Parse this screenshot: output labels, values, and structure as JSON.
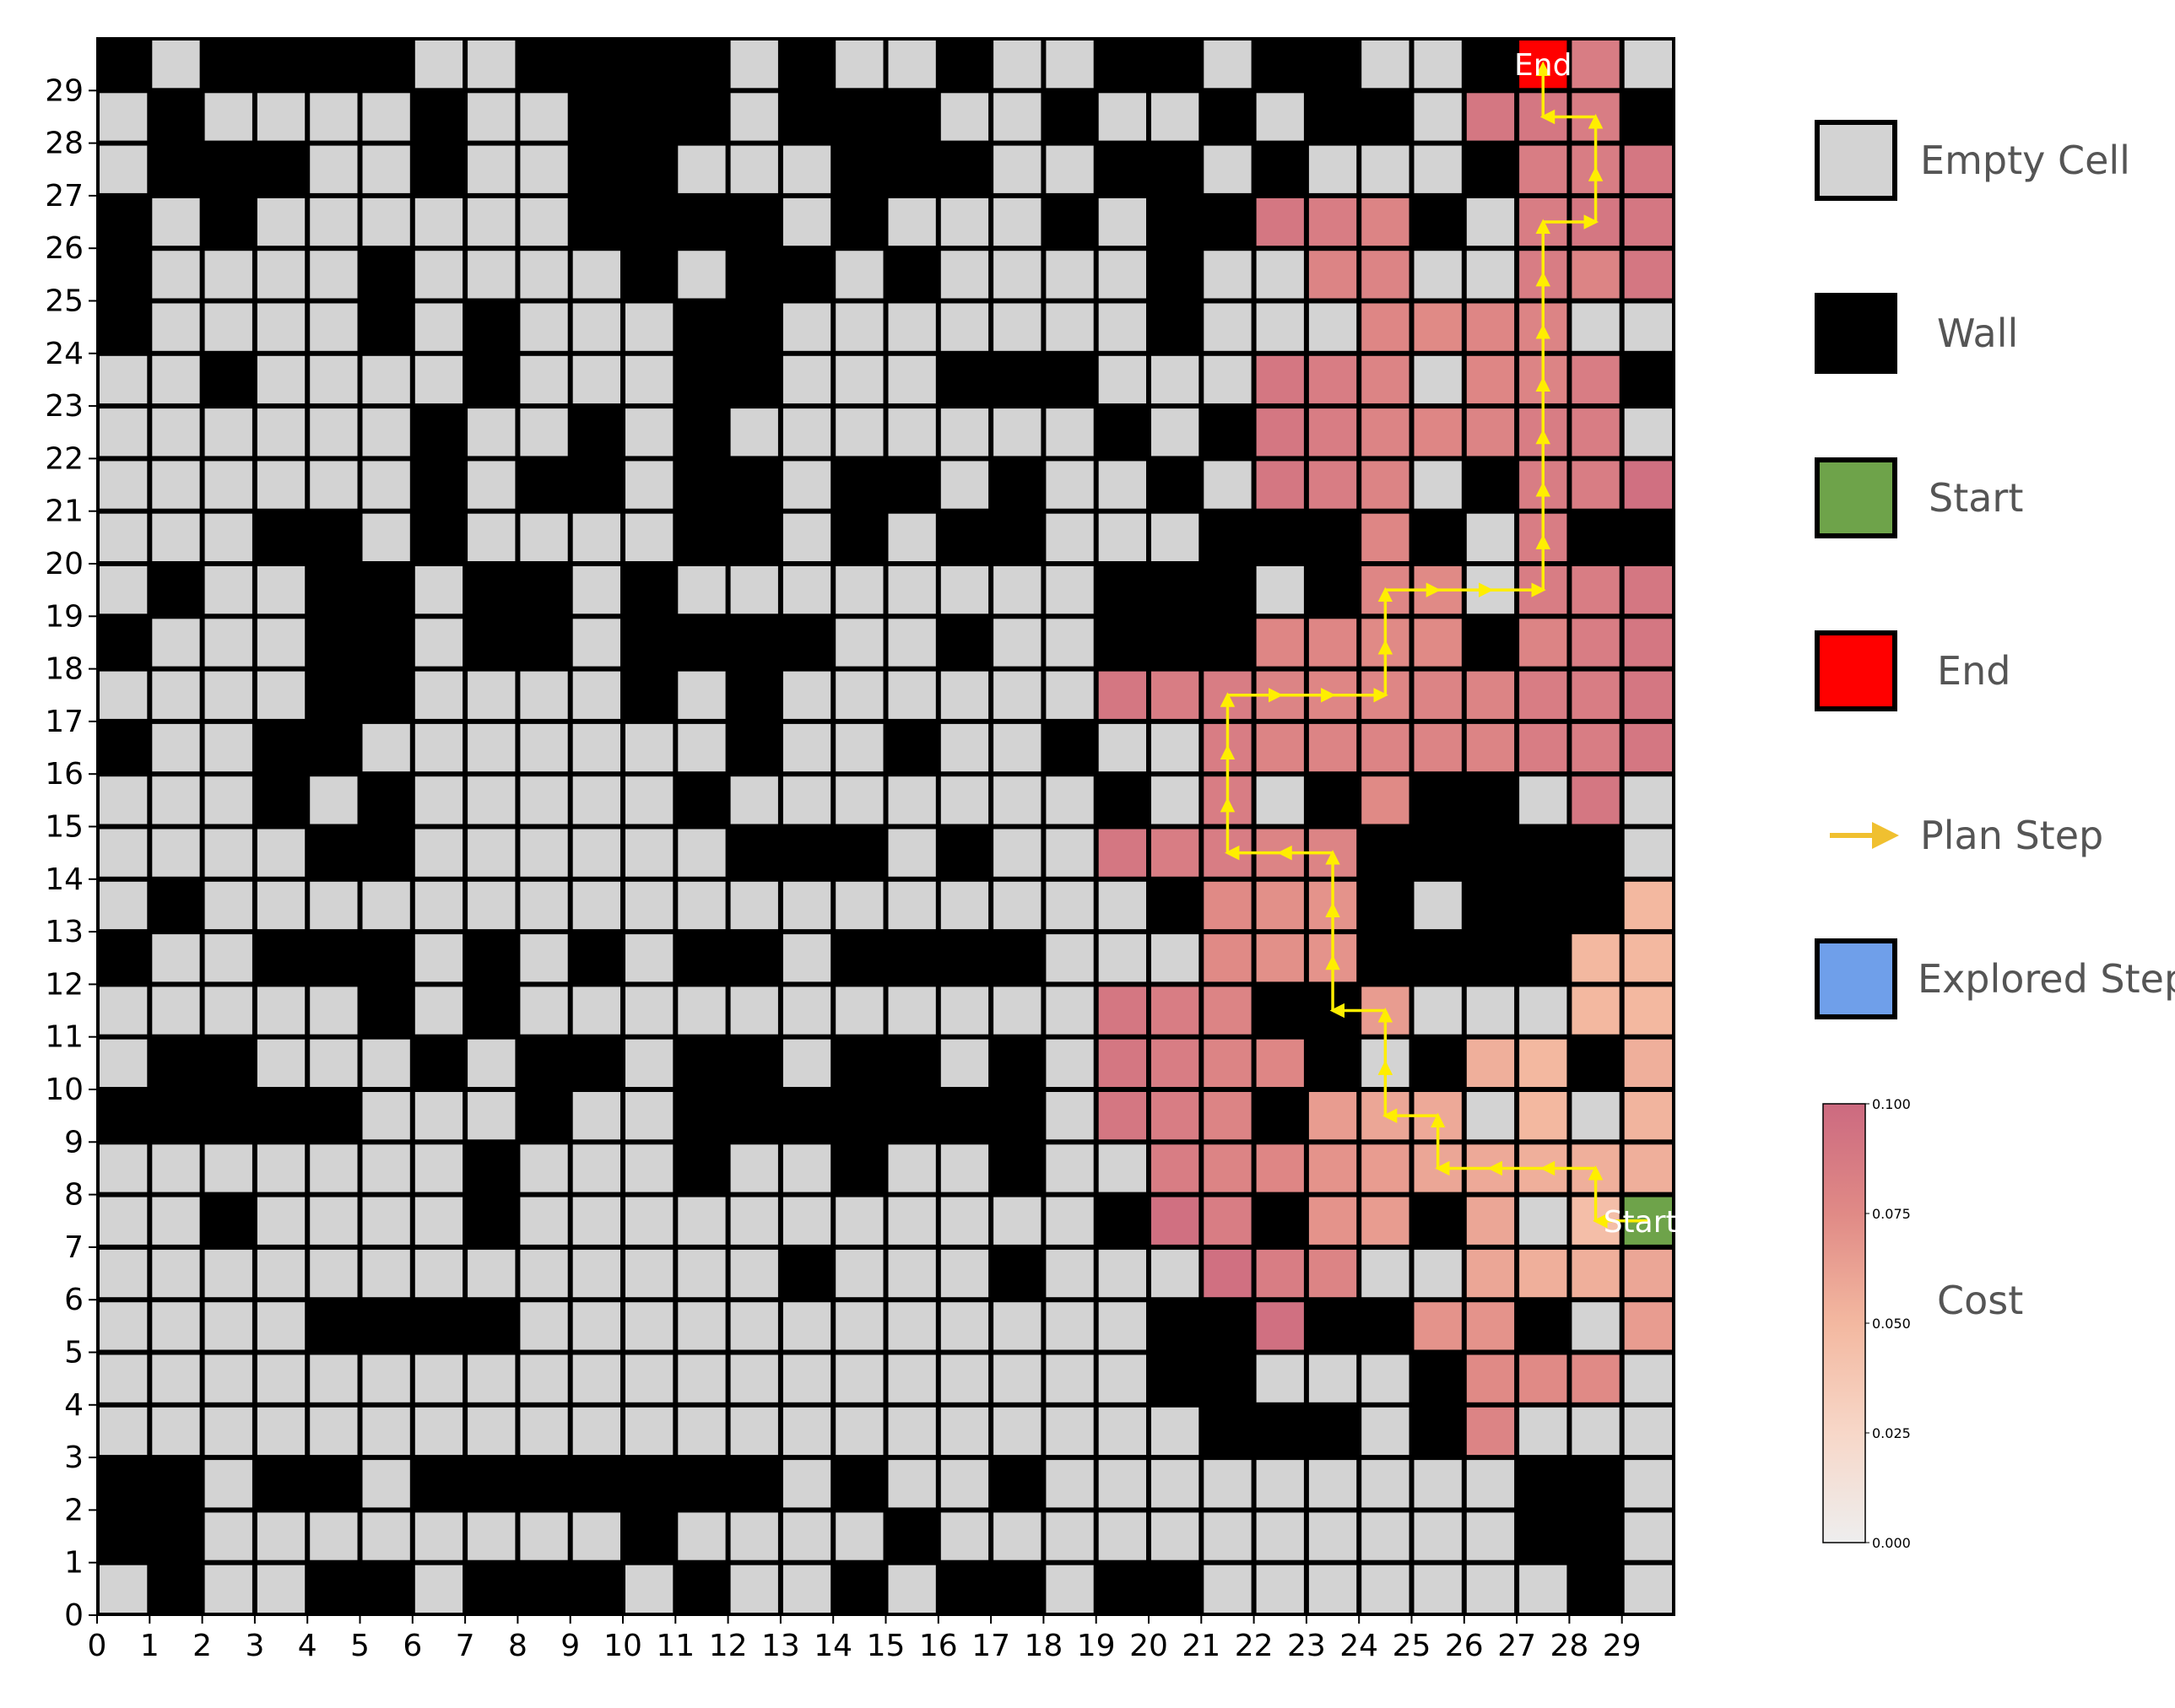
{
  "grid": {
    "size": 30,
    "rows_top_to_bottom": [
      "#.#####..###.#.###.###...#...###...###.###.#.",
      ".#.###.#.#...##.#.##...##...#..###.###.##..#"
    ],
    "walls_top_to_bottom": [
      "101111001111010010011011001000",
      "010000100111011100100101100011",
      "011100100110001110011010001110",
      "101000000111101000101100010100",
      "100001000010110100001000000001",
      "100001010001100000001000111100",
      "001000010001100011100000001111",
      "000000100101000000010101100010",
      "000000101101101101001000001100",
      "000110100001101011000111010011",
      "010011011010000000011101010011",
      "100011011011110010011111111000",
      "000011000010100000000110011100",
      "100110000000100100100100011110",
      "000101000001000000010001111000",
      "000011000000111010000111111110",
      "010000000000000000001111101110",
      "100111010101101111000111111111",
      "000001010000000000001011000001",
      "011000101101101101011101011010",
      "111110001001111111000011000000",
      "000000010001001001001000010000",
      "001000010000000000011011010000",
      "000000000000010001000111000000",
      "000011110000000000001101111101",
      "000000000000000000001100010000",
      "000000000000000000000111011000",
      "110110111111101001000000000110",
      "110000000010000100000000000110",
      "010011011101001011011000000010"
    ]
  },
  "explored": [
    [
      22,
      26,
      0.09
    ],
    [
      23,
      26,
      0.085
    ],
    [
      24,
      26,
      0.08
    ],
    [
      29,
      26,
      0.09
    ],
    [
      23,
      25,
      0.08
    ],
    [
      24,
      25,
      0.08
    ],
    [
      28,
      25,
      0.08
    ],
    [
      29,
      25,
      0.09
    ],
    [
      24,
      24,
      0.078
    ],
    [
      25,
      24,
      0.075
    ],
    [
      26,
      24,
      0.078
    ],
    [
      27,
      24,
      0.08
    ],
    [
      22,
      23,
      0.09
    ],
    [
      23,
      23,
      0.085
    ],
    [
      24,
      23,
      0.08
    ],
    [
      26,
      23,
      0.078
    ],
    [
      27,
      23,
      0.08
    ],
    [
      22,
      22,
      0.09
    ],
    [
      23,
      22,
      0.085
    ],
    [
      24,
      22,
      0.08
    ],
    [
      25,
      22,
      0.078
    ],
    [
      26,
      22,
      0.08
    ],
    [
      27,
      22,
      0.085
    ],
    [
      28,
      22,
      0.085
    ],
    [
      22,
      21,
      0.09
    ],
    [
      23,
      21,
      0.085
    ],
    [
      24,
      21,
      0.08
    ],
    [
      27,
      21,
      0.085
    ],
    [
      28,
      21,
      0.085
    ],
    [
      29,
      21,
      0.095
    ],
    [
      24,
      20,
      0.078
    ],
    [
      27,
      20,
      0.085
    ],
    [
      24,
      19,
      0.078
    ],
    [
      25,
      19,
      0.075
    ],
    [
      27,
      19,
      0.085
    ],
    [
      28,
      19,
      0.085
    ],
    [
      29,
      19,
      0.09
    ],
    [
      22,
      18,
      0.078
    ],
    [
      23,
      18,
      0.078
    ],
    [
      24,
      18,
      0.075
    ],
    [
      25,
      18,
      0.075
    ],
    [
      27,
      18,
      0.08
    ],
    [
      28,
      18,
      0.085
    ],
    [
      29,
      18,
      0.09
    ],
    [
      19,
      17,
      0.09
    ],
    [
      20,
      17,
      0.085
    ],
    [
      21,
      17,
      0.085
    ],
    [
      22,
      17,
      0.08
    ],
    [
      23,
      17,
      0.078
    ],
    [
      24,
      17,
      0.078
    ],
    [
      25,
      17,
      0.08
    ],
    [
      26,
      17,
      0.08
    ],
    [
      27,
      17,
      0.085
    ],
    [
      28,
      17,
      0.085
    ],
    [
      29,
      17,
      0.09
    ],
    [
      21,
      16,
      0.085
    ],
    [
      22,
      16,
      0.08
    ],
    [
      23,
      16,
      0.08
    ],
    [
      24,
      16,
      0.08
    ],
    [
      25,
      16,
      0.08
    ],
    [
      26,
      16,
      0.08
    ],
    [
      27,
      16,
      0.085
    ],
    [
      28,
      16,
      0.085
    ],
    [
      29,
      16,
      0.09
    ],
    [
      21,
      15,
      0.085
    ],
    [
      24,
      15,
      0.075
    ],
    [
      28,
      15,
      0.09
    ],
    [
      19,
      14,
      0.09
    ],
    [
      20,
      14,
      0.085
    ],
    [
      21,
      14,
      0.085
    ],
    [
      22,
      14,
      0.08
    ],
    [
      23,
      14,
      0.08
    ],
    [
      21,
      13,
      0.075
    ],
    [
      22,
      13,
      0.072
    ],
    [
      23,
      13,
      0.07
    ],
    [
      29,
      13,
      0.05
    ],
    [
      21,
      12,
      0.075
    ],
    [
      22,
      12,
      0.072
    ],
    [
      23,
      12,
      0.07
    ],
    [
      28,
      12,
      0.05
    ],
    [
      29,
      12,
      0.05
    ],
    [
      19,
      11,
      0.09
    ],
    [
      20,
      11,
      0.085
    ],
    [
      21,
      11,
      0.08
    ],
    [
      24,
      11,
      0.065
    ],
    [
      28,
      11,
      0.05
    ],
    [
      29,
      11,
      0.05
    ],
    [
      19,
      10,
      0.09
    ],
    [
      20,
      10,
      0.085
    ],
    [
      21,
      10,
      0.08
    ],
    [
      22,
      10,
      0.078
    ],
    [
      26,
      10,
      0.055
    ],
    [
      27,
      10,
      0.05
    ],
    [
      29,
      10,
      0.055
    ],
    [
      19,
      9,
      0.09
    ],
    [
      20,
      9,
      0.085
    ],
    [
      21,
      9,
      0.08
    ],
    [
      23,
      9,
      0.065
    ],
    [
      24,
      9,
      0.06
    ],
    [
      25,
      9,
      0.058
    ],
    [
      27,
      9,
      0.05
    ],
    [
      29,
      9,
      0.052
    ],
    [
      20,
      8,
      0.085
    ],
    [
      21,
      8,
      0.08
    ],
    [
      22,
      8,
      0.078
    ],
    [
      23,
      8,
      0.07
    ],
    [
      24,
      8,
      0.065
    ],
    [
      25,
      8,
      0.06
    ],
    [
      26,
      8,
      0.058
    ],
    [
      27,
      8,
      0.055
    ],
    [
      28,
      8,
      0.055
    ],
    [
      29,
      8,
      0.055
    ],
    [
      20,
      7,
      0.095
    ],
    [
      21,
      7,
      0.085
    ],
    [
      23,
      7,
      0.07
    ],
    [
      24,
      7,
      0.065
    ],
    [
      26,
      7,
      0.06
    ],
    [
      28,
      7,
      0.045
    ],
    [
      21,
      6,
      0.095
    ],
    [
      22,
      6,
      0.085
    ],
    [
      23,
      6,
      0.08
    ],
    [
      26,
      6,
      0.06
    ],
    [
      27,
      6,
      0.055
    ],
    [
      28,
      6,
      0.055
    ],
    [
      29,
      6,
      0.06
    ],
    [
      22,
      5,
      0.095
    ],
    [
      25,
      5,
      0.07
    ],
    [
      26,
      5,
      0.07
    ],
    [
      29,
      5,
      0.065
    ],
    [
      26,
      4,
      0.075
    ],
    [
      27,
      4,
      0.075
    ],
    [
      28,
      4,
      0.075
    ],
    [
      26,
      3,
      0.08
    ],
    [
      28,
      29,
      0.085
    ],
    [
      28,
      28,
      0.085
    ],
    [
      27,
      28,
      0.09
    ],
    [
      27,
      27,
      0.085
    ],
    [
      28,
      27,
      0.085
    ],
    [
      29,
      27,
      0.09
    ],
    [
      27,
      26,
      0.085
    ],
    [
      28,
      26,
      0.09
    ],
    [
      27,
      25,
      0.085
    ],
    [
      28,
      23,
      0.085
    ],
    [
      27,
      29,
      0.09
    ],
    [
      26,
      28,
      0.09
    ]
  ],
  "start": {
    "cell": [
      29,
      7
    ],
    "label": "Start",
    "color": "#6ea34a"
  },
  "end": {
    "cell": [
      27,
      29
    ],
    "label": "End",
    "color": "#ff0000"
  },
  "plan_path": [
    [
      29,
      7
    ],
    [
      28,
      7
    ],
    [
      28,
      8
    ],
    [
      27,
      8
    ],
    [
      26,
      8
    ],
    [
      25,
      8
    ],
    [
      25,
      9
    ],
    [
      24,
      9
    ],
    [
      24,
      10
    ],
    [
      24,
      11
    ],
    [
      23,
      11
    ],
    [
      23,
      12
    ],
    [
      23,
      13
    ],
    [
      23,
      14
    ],
    [
      22,
      14
    ],
    [
      21,
      14
    ],
    [
      21,
      15
    ],
    [
      21,
      16
    ],
    [
      21,
      17
    ],
    [
      22,
      17
    ],
    [
      23,
      17
    ],
    [
      24,
      17
    ],
    [
      24,
      18
    ],
    [
      24,
      19
    ],
    [
      25,
      19
    ],
    [
      26,
      19
    ],
    [
      27,
      19
    ],
    [
      27,
      20
    ],
    [
      27,
      21
    ],
    [
      27,
      22
    ],
    [
      27,
      23
    ],
    [
      27,
      24
    ],
    [
      27,
      25
    ],
    [
      27,
      26
    ],
    [
      28,
      26
    ],
    [
      28,
      27
    ],
    [
      28,
      28
    ],
    [
      27,
      28
    ],
    [
      27,
      29
    ]
  ],
  "axes": {
    "x_ticks": [
      "0",
      "1",
      "2",
      "3",
      "4",
      "5",
      "6",
      "7",
      "8",
      "9",
      "10",
      "11",
      "12",
      "13",
      "14",
      "15",
      "16",
      "17",
      "18",
      "19",
      "20",
      "21",
      "22",
      "23",
      "24",
      "25",
      "26",
      "27",
      "28",
      "29"
    ],
    "y_ticks": [
      "0",
      "1",
      "2",
      "3",
      "4",
      "5",
      "6",
      "7",
      "8",
      "9",
      "10",
      "11",
      "12",
      "13",
      "14",
      "15",
      "16",
      "17",
      "18",
      "19",
      "20",
      "21",
      "22",
      "23",
      "24",
      "25",
      "26",
      "27",
      "28",
      "29"
    ]
  },
  "legend": {
    "items": [
      {
        "label": "Empty Cell",
        "icon": "empty-cell-swatch",
        "color": "#d3d3d3"
      },
      {
        "label": "Wall",
        "icon": "wall-swatch",
        "color": "#000000"
      },
      {
        "label": "Start",
        "icon": "start-swatch",
        "color": "#6ea34a"
      },
      {
        "label": "End",
        "icon": "end-swatch",
        "color": "#ff0000"
      },
      {
        "label": "Plan Step",
        "icon": "arrow-icon",
        "color": "#f0c030"
      },
      {
        "label": "Explored Step",
        "icon": "explored-swatch",
        "color": "#6f9fea"
      }
    ]
  },
  "colorbar": {
    "label": "Cost",
    "ticks": [
      "0.000",
      "0.025",
      "0.050",
      "0.075",
      "0.100"
    ],
    "min": 0.0,
    "max": 0.1,
    "colors": [
      "#eeeeee",
      "#f7d7c8",
      "#f3b8a0",
      "#e08a86",
      "#cc6a80"
    ]
  },
  "colors": {
    "empty": "#d3d3d3",
    "wall": "#000000",
    "path_arrow": "#ffee00"
  }
}
